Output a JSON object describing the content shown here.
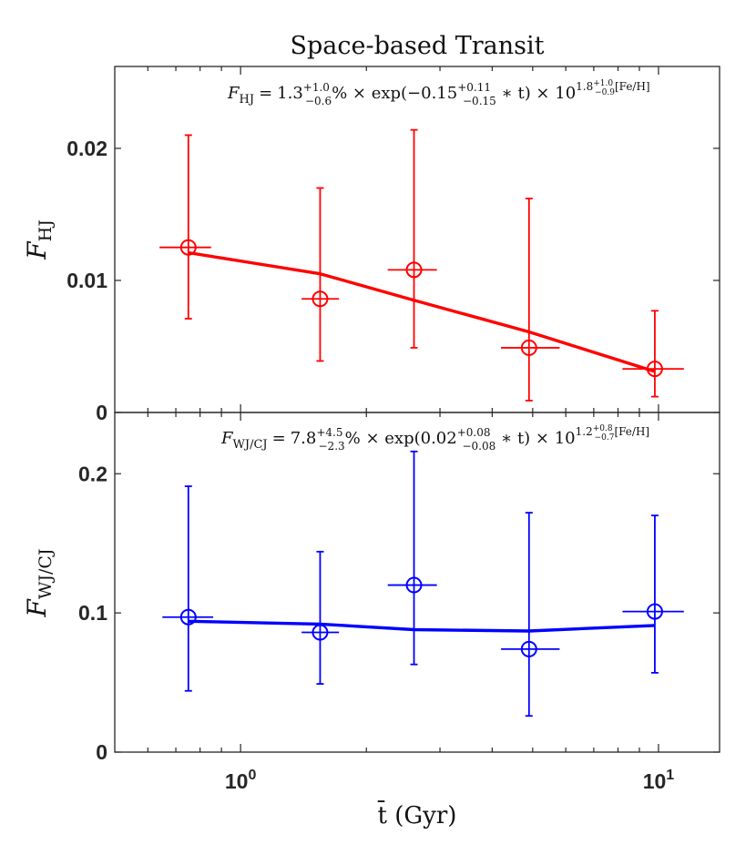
{
  "figure_title": "Space-based Transit",
  "xlabel": "t̄ (Gyr)",
  "chart_data": [
    {
      "type": "scatter",
      "name": "hot-jupiter-panel",
      "color": "#ff0000",
      "ylabel_main": "F",
      "ylabel_sub": "HJ",
      "ylim": [
        0,
        0.0262
      ],
      "yticks": [
        0,
        0.01,
        0.02
      ],
      "ytick_labels": [
        "0",
        "0.01",
        "0.02"
      ],
      "xlim": [
        0.5,
        14
      ],
      "xscale": "log",
      "points": [
        {
          "x": 0.75,
          "y": 0.0125,
          "y_low": 0.0071,
          "y_high": 0.021,
          "x_low": 0.64,
          "x_high": 0.85
        },
        {
          "x": 1.55,
          "y": 0.0086,
          "y_low": 0.0039,
          "y_high": 0.017,
          "x_low": 1.4,
          "x_high": 1.72
        },
        {
          "x": 2.6,
          "y": 0.0108,
          "y_low": 0.0049,
          "y_high": 0.0214,
          "x_low": 2.25,
          "x_high": 2.95
        },
        {
          "x": 4.9,
          "y": 0.0049,
          "y_low": 0.0009,
          "y_high": 0.0162,
          "x_low": 4.2,
          "x_high": 5.8
        },
        {
          "x": 9.8,
          "y": 0.0033,
          "y_low": 0.0012,
          "y_high": 0.0077,
          "x_low": 8.2,
          "x_high": 11.5
        }
      ],
      "fit_line": {
        "x": [
          0.75,
          1.55,
          2.6,
          4.9,
          9.8
        ],
        "y": [
          0.0121,
          0.0105,
          0.0085,
          0.0061,
          0.0031
        ]
      },
      "equation": {
        "lhs_main": "F",
        "lhs_sub": "HJ",
        "eq": "=",
        "coef": "1.3",
        "coef_sup": "+1.0",
        "coef_sub": "−0.6",
        "pct": "% × exp(−0.15",
        "exp_sup": "+0.11",
        "exp_sub": "−0.15",
        "exp_tail": " ∗ t) × 10",
        "pow": "1.8",
        "pow_sup": "+1.0",
        "pow_sub": "−0.9",
        "pow_tail": "[Fe/H]"
      }
    },
    {
      "type": "scatter",
      "name": "warm-cold-jupiter-panel",
      "color": "#0000ff",
      "ylabel_main": "F",
      "ylabel_sub": "WJ/CJ",
      "ylim": [
        0,
        0.244
      ],
      "yticks": [
        0,
        0.1,
        0.2
      ],
      "ytick_labels": [
        "0",
        "0.1",
        "0.2"
      ],
      "xlim": [
        0.5,
        14
      ],
      "xscale": "log",
      "points": [
        {
          "x": 0.75,
          "y": 0.097,
          "y_low": 0.044,
          "y_high": 0.191,
          "x_low": 0.65,
          "x_high": 0.86
        },
        {
          "x": 1.55,
          "y": 0.086,
          "y_low": 0.049,
          "y_high": 0.144,
          "x_low": 1.4,
          "x_high": 1.72
        },
        {
          "x": 2.6,
          "y": 0.12,
          "y_low": 0.063,
          "y_high": 0.216,
          "x_low": 2.25,
          "x_high": 2.95
        },
        {
          "x": 4.9,
          "y": 0.074,
          "y_low": 0.026,
          "y_high": 0.172,
          "x_low": 4.2,
          "x_high": 5.8
        },
        {
          "x": 9.8,
          "y": 0.101,
          "y_low": 0.057,
          "y_high": 0.17,
          "x_low": 8.2,
          "x_high": 11.5
        }
      ],
      "fit_line": {
        "x": [
          0.75,
          1.55,
          2.6,
          4.9,
          9.8
        ],
        "y": [
          0.094,
          0.092,
          0.088,
          0.087,
          0.091
        ]
      },
      "equation": {
        "lhs_main": "F",
        "lhs_sub": "WJ/CJ",
        "eq": "=",
        "coef": "7.8",
        "coef_sup": "+4.5",
        "coef_sub": "−2.3",
        "pct": "% × exp(0.02",
        "exp_sup": "+0.08",
        "exp_sub": "−0.08",
        "exp_tail": " ∗ t) × 10",
        "pow": "1.2",
        "pow_sup": "+0.8",
        "pow_sub": "−0.7",
        "pow_tail": "[Fe/H]"
      }
    }
  ],
  "xaxis": {
    "major_ticks": [
      1,
      10
    ],
    "major_tick_labels": [
      {
        "base": "10",
        "exp": "0"
      },
      {
        "base": "10",
        "exp": "1"
      }
    ],
    "minor_ticks": [
      0.6,
      0.7,
      0.8,
      0.9,
      2,
      3,
      4,
      5,
      6,
      7,
      8,
      9
    ]
  }
}
